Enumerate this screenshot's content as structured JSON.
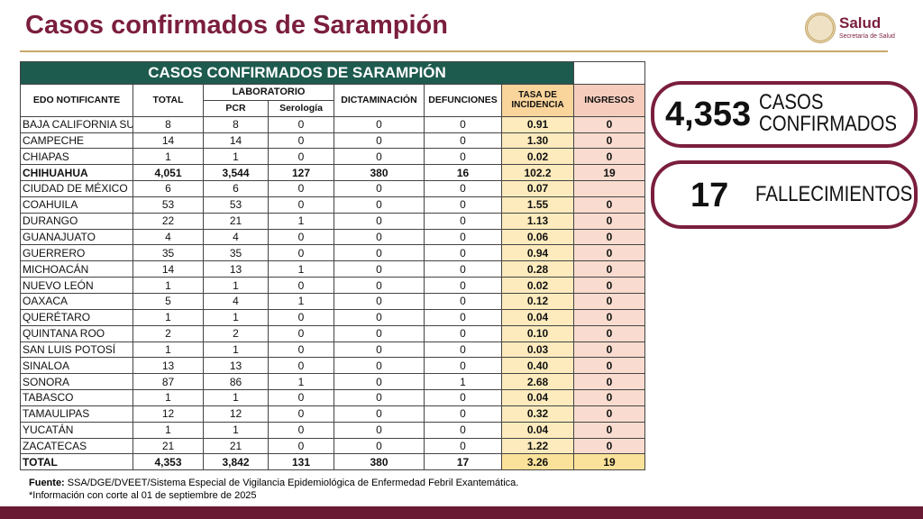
{
  "header": {
    "title": "Casos confirmados de Sarampión",
    "logo_name": "Salud",
    "logo_subtitle": "Secretaría de Salud"
  },
  "table": {
    "title": "CASOS CONFIRMADOS DE SARAMPIÓN",
    "columns": {
      "state": "EDO NOTIFICANTE",
      "total": "TOTAL",
      "laboratory": "LABORATORIO",
      "pcr": "PCR",
      "serology": "Serología",
      "dictamination": "DICTAMINACIÓN",
      "deaths": "DEFUNCIONES",
      "incidence": "TASA DE INCIDENCIA",
      "admissions": "INGRESOS"
    },
    "rows": [
      [
        "BAJA CALIFORNIA SUR",
        "8",
        "8",
        "0",
        "0",
        "0",
        "0.91",
        "0"
      ],
      [
        "CAMPECHE",
        "14",
        "14",
        "0",
        "0",
        "0",
        "1.30",
        "0"
      ],
      [
        "CHIAPAS",
        "1",
        "1",
        "0",
        "0",
        "0",
        "0.02",
        "0"
      ],
      [
        "CHIHUAHUA",
        "4,051",
        "3,544",
        "127",
        "380",
        "16",
        "102.2",
        "19"
      ],
      [
        "CIUDAD DE MÉXICO",
        "6",
        "6",
        "0",
        "0",
        "0",
        "0.07",
        null
      ],
      [
        "COAHUILA",
        "53",
        "53",
        "0",
        "0",
        "0",
        "1.55",
        "0"
      ],
      [
        "DURANGO",
        "22",
        "21",
        "1",
        "0",
        "0",
        "1.13",
        "0"
      ],
      [
        "GUANAJUATO",
        "4",
        "4",
        "0",
        "0",
        "0",
        "0.06",
        "0"
      ],
      [
        "GUERRERO",
        "35",
        "35",
        "0",
        "0",
        "0",
        "0.94",
        "0"
      ],
      [
        "MICHOACÁN",
        "14",
        "13",
        "1",
        "0",
        "0",
        "0.28",
        "0"
      ],
      [
        "NUEVO LEÓN",
        "1",
        "1",
        "0",
        "0",
        "0",
        "0.02",
        "0"
      ],
      [
        "OAXACA",
        "5",
        "4",
        "1",
        "0",
        "0",
        "0.12",
        "0"
      ],
      [
        "QUERÉTARO",
        "1",
        "1",
        "0",
        "0",
        "0",
        "0.04",
        "0"
      ],
      [
        "QUINTANA ROO",
        "2",
        "2",
        "0",
        "0",
        "0",
        "0.10",
        "0"
      ],
      [
        "SAN LUIS POTOSÍ",
        "1",
        "1",
        "0",
        "0",
        "0",
        "0.03",
        "0"
      ],
      [
        "SINALOA",
        "13",
        "13",
        "0",
        "0",
        "0",
        "0.40",
        "0"
      ],
      [
        "SONORA",
        "87",
        "86",
        "1",
        "0",
        "1",
        "2.68",
        "0"
      ],
      [
        "TABASCO",
        "1",
        "1",
        "0",
        "0",
        "0",
        "0.04",
        "0"
      ],
      [
        "TAMAULIPAS",
        "12",
        "12",
        "0",
        "0",
        "0",
        "0.32",
        "0"
      ],
      [
        "YUCATÁN",
        "1",
        "1",
        "0",
        "0",
        "0",
        "0.04",
        "0"
      ],
      [
        "ZACATECAS",
        "21",
        "21",
        "0",
        "0",
        "0",
        "1.22",
        "0"
      ]
    ],
    "total": [
      "TOTAL",
      "4,353",
      "3,842",
      "131",
      "380",
      "17",
      "3.26",
      "19"
    ]
  },
  "summary": {
    "cases": {
      "value": "4,353",
      "label_line1": "CASOS",
      "label_line2": "CONFIRMADOS"
    },
    "deaths": {
      "value": "17",
      "label": "FALLECIMIENTOS"
    }
  },
  "footer": {
    "source_label": "Fuente:",
    "source": "SSA/DGE/DVEET/Sistema Especial de Vigilancia Epidemiológica de Enfermedad Febril Exantemática.",
    "note": "*Información con corte al 01 de septiembre  de 2025"
  }
}
